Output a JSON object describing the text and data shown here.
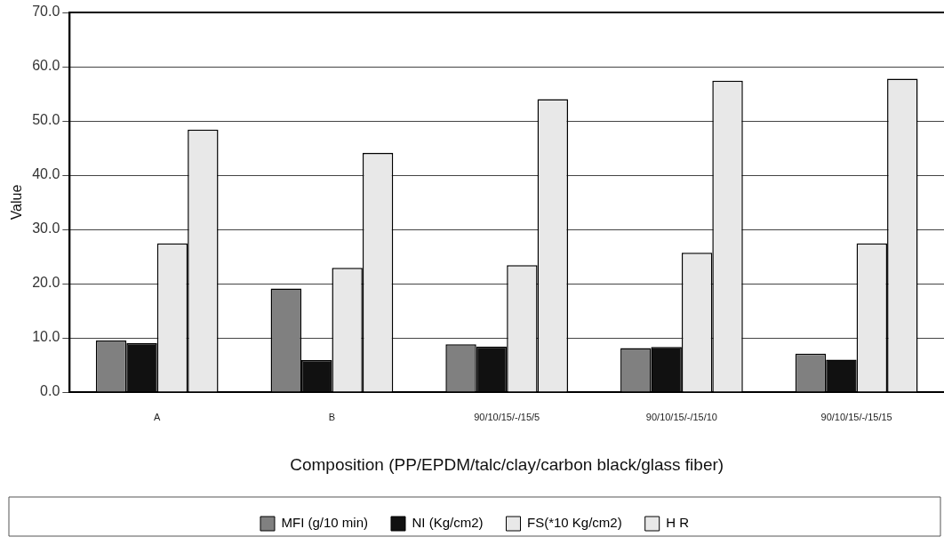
{
  "chart_data": {
    "type": "bar",
    "xlabel": "Composition (PP/EPDM/talc/clay/carbon black/glass fiber)",
    "ylabel": "Value",
    "categories": [
      "A",
      "B",
      "90/10/15/-/15/5",
      "90/10/15/-/15/10",
      "90/10/15/-/15/15"
    ],
    "series": [
      {
        "name": "MFI (g/10 min)",
        "color": "#808080",
        "values": [
          9.5,
          19.1,
          8.8,
          8.1,
          7.1
        ]
      },
      {
        "name": "NI (Kg/cm2)",
        "color": "#111111",
        "values": [
          9.0,
          5.9,
          8.4,
          8.3,
          6.0
        ]
      },
      {
        "name": "FS(*10 Kg/cm2)",
        "color": "#e8e8e8",
        "values": [
          27.4,
          22.9,
          23.4,
          25.7,
          27.4
        ]
      },
      {
        "name": "H R",
        "color": "#e8e8e8",
        "values": [
          48.4,
          44.1,
          54.0,
          57.4,
          57.8
        ]
      }
    ],
    "ylim": [
      0,
      70
    ],
    "yticks": [
      {
        "value": 0,
        "label": "0.0"
      },
      {
        "value": 10,
        "label": "10.0"
      },
      {
        "value": 20,
        "label": "20.0"
      },
      {
        "value": 30,
        "label": "30.0"
      },
      {
        "value": 40,
        "label": "40.0"
      },
      {
        "value": 50,
        "label": "50.0"
      },
      {
        "value": 60,
        "label": "60.0"
      },
      {
        "value": 70,
        "label": "70.0"
      }
    ],
    "grid": "y",
    "legend": "bottom"
  }
}
